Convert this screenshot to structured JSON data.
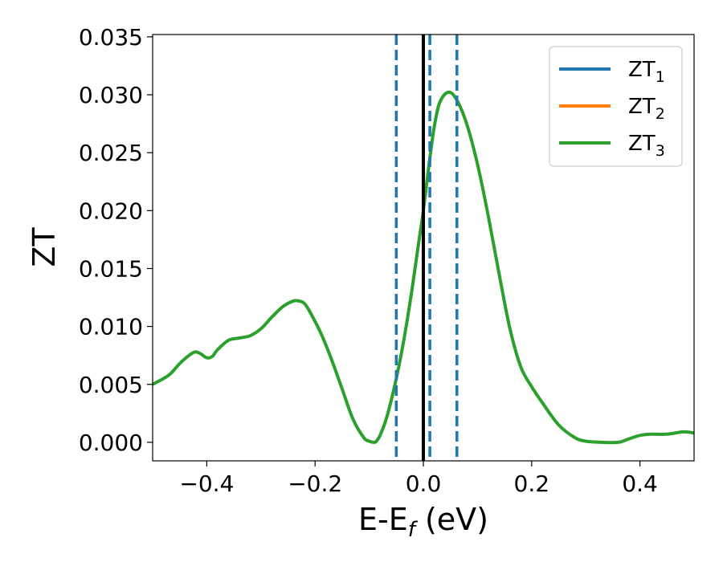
{
  "chart_data": {
    "type": "line",
    "title": "",
    "xlabel": "E-E",
    "xlabel_sub": "f",
    "xlabel_suffix": " (eV)",
    "ylabel": "ZT",
    "xlim": [
      -0.5,
      0.5
    ],
    "ylim": [
      -0.0016,
      0.0352
    ],
    "xticks": [
      -0.4,
      -0.2,
      0.0,
      0.2,
      0.4
    ],
    "xtick_labels": [
      "−0.4",
      "−0.2",
      "0.0",
      "0.2",
      "0.4"
    ],
    "yticks": [
      0.0,
      0.005,
      0.01,
      0.015,
      0.02,
      0.025,
      0.03,
      0.035
    ],
    "ytick_labels": [
      "0.000",
      "0.005",
      "0.010",
      "0.015",
      "0.020",
      "0.025",
      "0.030",
      "0.035"
    ],
    "grid": false,
    "legend_position": "top-right",
    "series": [
      {
        "name": "ZT",
        "sub": "1",
        "color": "#1f77b4",
        "visible": false
      },
      {
        "name": "ZT",
        "sub": "2",
        "color": "#ff7f0e",
        "visible": false
      },
      {
        "name": "ZT",
        "sub": "3",
        "color": "#2ca02c",
        "visible": true
      }
    ],
    "x": [
      -0.5,
      -0.47,
      -0.45,
      -0.43,
      -0.42,
      -0.41,
      -0.4,
      -0.39,
      -0.38,
      -0.36,
      -0.34,
      -0.32,
      -0.3,
      -0.28,
      -0.26,
      -0.24,
      -0.23,
      -0.22,
      -0.21,
      -0.19,
      -0.17,
      -0.15,
      -0.13,
      -0.11,
      -0.1,
      -0.09,
      -0.085,
      -0.08,
      -0.07,
      -0.06,
      -0.05,
      -0.04,
      -0.03,
      -0.02,
      -0.01,
      0.0,
      0.01,
      0.02,
      0.03,
      0.045,
      0.06,
      0.08,
      0.1,
      0.12,
      0.14,
      0.16,
      0.18,
      0.2,
      0.22,
      0.25,
      0.28,
      0.3,
      0.33,
      0.36,
      0.38,
      0.4,
      0.42,
      0.45,
      0.48,
      0.5
    ],
    "y": [
      0.005,
      0.0058,
      0.0068,
      0.0076,
      0.0078,
      0.0076,
      0.0073,
      0.0074,
      0.008,
      0.0088,
      0.009,
      0.0092,
      0.0098,
      0.0108,
      0.0117,
      0.0122,
      0.0122,
      0.012,
      0.0113,
      0.0095,
      0.0072,
      0.0046,
      0.002,
      0.0004,
      0.0001,
      0.0,
      0.0002,
      0.0006,
      0.0018,
      0.0035,
      0.0055,
      0.0078,
      0.0105,
      0.0135,
      0.0168,
      0.02,
      0.0238,
      0.0272,
      0.0293,
      0.0302,
      0.0297,
      0.0275,
      0.024,
      0.0195,
      0.0145,
      0.0098,
      0.0065,
      0.0048,
      0.0034,
      0.0015,
      0.0004,
      0.0001,
      0.0,
      0.0,
      0.0003,
      0.0006,
      0.0007,
      0.0007,
      0.0009,
      0.0008
    ],
    "vlines": [
      {
        "x": -0.05,
        "style": "dashed",
        "color": "#1f77b4"
      },
      {
        "x": 0.0,
        "style": "solid",
        "color": "#000000"
      },
      {
        "x": 0.012,
        "style": "dashed",
        "color": "#1f77b4"
      },
      {
        "x": 0.062,
        "style": "dashed",
        "color": "#1f77b4"
      }
    ]
  }
}
